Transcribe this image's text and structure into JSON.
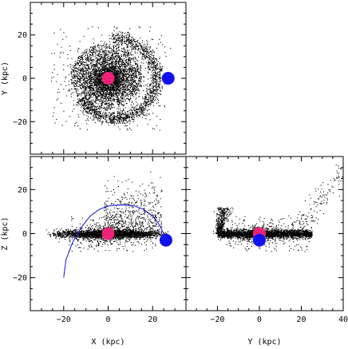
{
  "chart_data": [
    {
      "type": "scatter",
      "panel": "top-left",
      "xlabel": "",
      "ylabel": "Y (kpc)",
      "xlim": [
        -35,
        35
      ],
      "ylim": [
        -35,
        35
      ],
      "x_ticks": [
        -20,
        0,
        20
      ],
      "y_ticks": [
        -20,
        0,
        20
      ],
      "x_tick_labels_shown": false,
      "y_tick_labels": [
        "−20",
        "0",
        "20"
      ],
      "grid": false,
      "markers": [
        {
          "role": "center",
          "color": "#ee2277",
          "x": 0,
          "y": 0
        },
        {
          "role": "satellite",
          "color": "#1111ee",
          "x": 27,
          "y": 0
        }
      ],
      "particle_distribution": "dense spiral: core r~5 kpc, dense disk r~15 kpc, trailing arm wrapping from (~20,15) through (~22,-10) to (~-15,-17)"
    },
    {
      "type": "scatter",
      "panel": "bottom-left",
      "xlabel": "X (kpc)",
      "ylabel": "Z (kpc)",
      "xlim": [
        -35,
        35
      ],
      "ylim": [
        -35,
        35
      ],
      "x_ticks": [
        -20,
        0,
        20
      ],
      "y_ticks": [
        -20,
        0,
        20
      ],
      "x_tick_labels": [
        "−20",
        "0",
        "20"
      ],
      "y_tick_labels": [
        "−20",
        "0",
        "20"
      ],
      "grid": false,
      "markers": [
        {
          "role": "center",
          "color": "#ee2277",
          "x": 0,
          "y": 0
        },
        {
          "role": "satellite",
          "color": "#1111ee",
          "x": 26,
          "y": -3
        }
      ],
      "orbit": {
        "color": "#1111ee",
        "x": [
          -20,
          -19,
          -16,
          -12,
          -8,
          -4,
          0,
          4,
          8,
          12,
          16,
          20,
          23,
          25,
          26
        ],
        "y": [
          -20,
          -12,
          -4,
          3,
          8,
          11,
          12.5,
          13,
          13,
          12.5,
          11,
          8,
          4,
          0,
          -3
        ]
      },
      "particle_distribution": "thin disk |x|<28, |z|<2; halo spray up to z~20 between x~0 and x~25"
    },
    {
      "type": "scatter",
      "panel": "bottom-right",
      "xlabel": "Y (kpc)",
      "ylabel": "",
      "xlim": [
        -35,
        40
      ],
      "ylim": [
        -35,
        35
      ],
      "x_ticks": [
        -20,
        0,
        20,
        40
      ],
      "y_ticks": [
        -20,
        0,
        20
      ],
      "x_tick_labels": [
        "−20",
        "0",
        "20",
        "40"
      ],
      "y_tick_labels_shown": false,
      "grid": false,
      "markers": [
        {
          "role": "center",
          "color": "#ee2277",
          "x": 0,
          "y": 0
        },
        {
          "role": "satellite",
          "color": "#1111ee",
          "x": 0,
          "y": -3
        }
      ],
      "particle_distribution": "thin disk -20<y<25, |z|<2; plume rising to z~12 near y=-20; sparse stream toward (40,30)"
    }
  ]
}
